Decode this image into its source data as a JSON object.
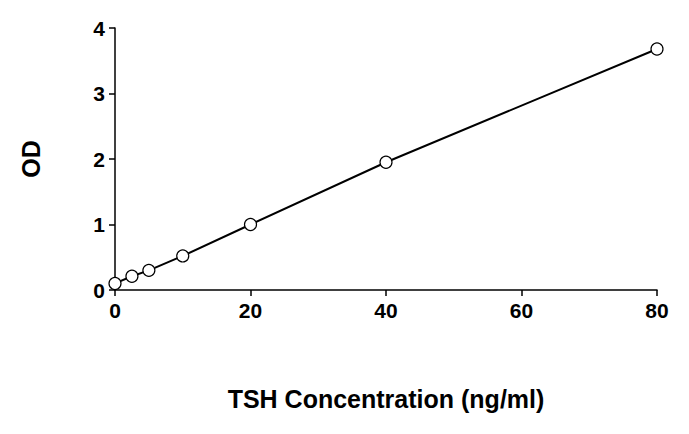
{
  "chart_data": {
    "type": "line",
    "x_label": "TSH Concentration (ng/ml)",
    "y_label": "OD",
    "x": [
      0,
      2.5,
      5,
      10,
      20,
      40,
      80
    ],
    "values": [
      0.1,
      0.21,
      0.3,
      0.52,
      1.0,
      1.95,
      3.68
    ],
    "color": "#000000",
    "marker": "circle",
    "xlim": [
      0,
      80
    ],
    "xticks": [
      0,
      20,
      40,
      60,
      80
    ],
    "ylim": [
      0,
      4
    ],
    "yticks": [
      0,
      1,
      2,
      3,
      4
    ],
    "grid": false
  }
}
